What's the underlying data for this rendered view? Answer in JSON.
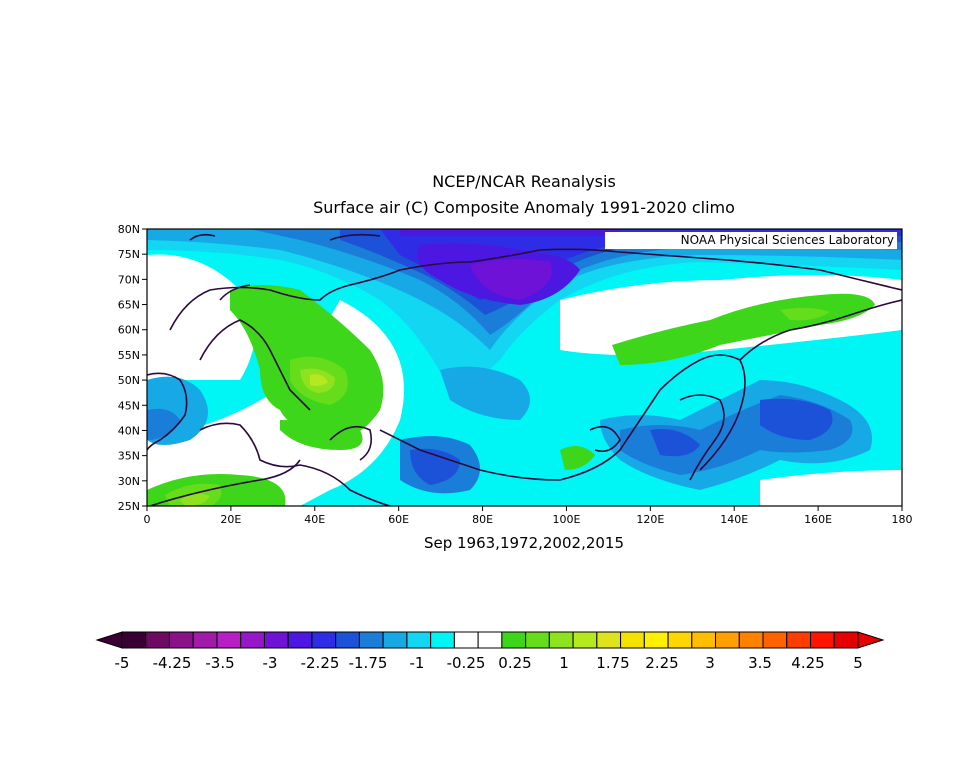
{
  "title_line1": "NCEP/NCAR Reanalysis",
  "title_line2": "Surface air (C) Composite Anomaly 1991-2020 climo",
  "credit": "NOAA Physical Sciences Laboratory",
  "subtitle": "Sep 1963,1972,2002,2015",
  "lat_labels": [
    "80N",
    "75N",
    "70N",
    "65N",
    "60N",
    "55N",
    "50N",
    "45N",
    "40N",
    "35N",
    "30N",
    "25N"
  ],
  "lon_labels": [
    "0",
    "20E",
    "40E",
    "60E",
    "80E",
    "100E",
    "120E",
    "140E",
    "160E",
    "180"
  ],
  "colorbar": {
    "labels": [
      "-5",
      "-4.25",
      "-3.5",
      "-3",
      "-2.25",
      "-1.75",
      "-1",
      "-0.25",
      "0.25",
      "1",
      "1.75",
      "2.25",
      "3",
      "3.5",
      "4.25",
      "5"
    ],
    "colors": [
      "#3a0034",
      "#6d0a61",
      "#8a1188",
      "#a21ba8",
      "#b81ec6",
      "#9617c8",
      "#6d12d6",
      "#4c17e0",
      "#2f2ce6",
      "#1b52d8",
      "#1a7ed9",
      "#17a9e6",
      "#12d6f2",
      "#00f5f5",
      "#ffffff",
      "#ffffff",
      "#3ed61a",
      "#66dd1a",
      "#8fe31e",
      "#b5e81e",
      "#dde41c",
      "#f4e200",
      "#fff000",
      "#ffd700",
      "#ffbe00",
      "#ffa000",
      "#ff8100",
      "#ff6200",
      "#ff3c00",
      "#ff1400",
      "#e60000"
    ]
  }
}
